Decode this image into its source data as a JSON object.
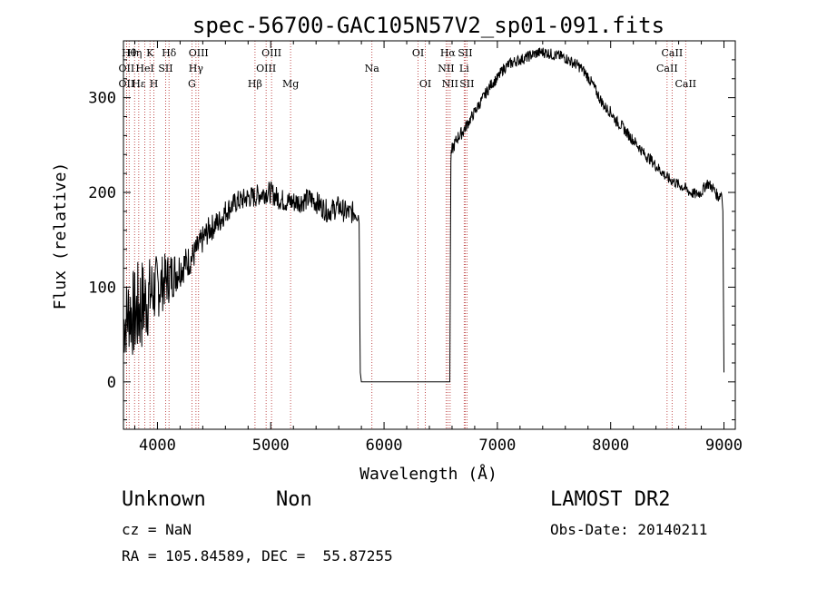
{
  "title": "spec-56700-GAC105N57V2_sp01-091.fits",
  "footer": {
    "classification": "Unknown",
    "subclass": "Non",
    "cz": "cz = NaN",
    "coords": "RA = 105.84589, DEC =  55.87255",
    "survey": "LAMOST DR2",
    "obs_date": "Obs-Date: 20140211"
  },
  "chart_data": {
    "type": "line",
    "xlabel": "Wavelength (Å)",
    "ylabel": "Flux (relative)",
    "xlim": [
      3700,
      9100
    ],
    "ylim": [
      -50,
      360
    ],
    "xticks": [
      4000,
      5000,
      6000,
      7000,
      8000,
      9000
    ],
    "yticks": [
      0,
      100,
      200,
      300
    ],
    "line_color": "#000000",
    "marker_color": "#b22222",
    "series": [
      {
        "x": [
          3700,
          3750,
          3800,
          3850,
          3900,
          3950,
          4000,
          4050,
          4100,
          4150,
          4200,
          4250,
          4300,
          4350,
          4400,
          4450,
          4500,
          4550,
          4600,
          4650,
          4700,
          4750,
          4800,
          4850,
          4900,
          4950,
          5000,
          5050,
          5100,
          5150,
          5200,
          5250,
          5300,
          5350,
          5400,
          5450,
          5500,
          5550,
          5600,
          5650,
          5700,
          5750,
          5780,
          5790,
          5800,
          5810,
          6580,
          6590,
          6600,
          6650,
          6700,
          6750,
          6800,
          6850,
          6900,
          6950,
          7000,
          7050,
          7100,
          7150,
          7200,
          7250,
          7300,
          7350,
          7400,
          7450,
          7500,
          7550,
          7600,
          7650,
          7700,
          7750,
          7800,
          7850,
          7900,
          7950,
          8000,
          8050,
          8100,
          8150,
          8200,
          8250,
          8300,
          8350,
          8400,
          8450,
          8500,
          8550,
          8600,
          8650,
          8700,
          8750,
          8800,
          8850,
          8900,
          8950,
          8980,
          8990,
          9000
        ],
        "y": [
          60,
          75,
          70,
          80,
          85,
          95,
          100,
          105,
          110,
          115,
          120,
          125,
          130,
          140,
          150,
          160,
          165,
          170,
          180,
          185,
          190,
          192,
          195,
          195,
          198,
          200,
          200,
          195,
          192,
          190,
          190,
          190,
          192,
          193,
          190,
          185,
          180,
          182,
          185,
          180,
          178,
          180,
          175,
          10,
          0,
          0,
          0,
          235,
          245,
          258,
          265,
          275,
          285,
          295,
          305,
          315,
          320,
          330,
          335,
          338,
          340,
          342,
          345,
          347,
          348,
          347,
          345,
          344,
          342,
          338,
          335,
          330,
          322,
          312,
          300,
          290,
          285,
          275,
          270,
          262,
          255,
          248,
          240,
          235,
          228,
          222,
          215,
          212,
          208,
          205,
          200,
          198,
          200,
          210,
          205,
          195,
          200,
          180,
          10
        ],
        "jitter": [
          40,
          45,
          50,
          55,
          45,
          40,
          35,
          30,
          28,
          25,
          20,
          18,
          16,
          15,
          15,
          14,
          14,
          13,
          13,
          12,
          12,
          12,
          12,
          12,
          12,
          12,
          12,
          12,
          12,
          12,
          12,
          12,
          12,
          12,
          12,
          12,
          12,
          12,
          12,
          12,
          12,
          12,
          10,
          0,
          0,
          0,
          0,
          6,
          7,
          7,
          7,
          6,
          6,
          6,
          6,
          6,
          6,
          6,
          6,
          6,
          6,
          6,
          6,
          6,
          6,
          6,
          6,
          6,
          6,
          6,
          6,
          6,
          6,
          6,
          6,
          6,
          6,
          6,
          6,
          6,
          6,
          6,
          6,
          6,
          6,
          6,
          6,
          6,
          6,
          6,
          6,
          6,
          6,
          6,
          6,
          6,
          6,
          0,
          0
        ]
      }
    ],
    "lines": [
      {
        "w": 3727,
        "label": "OII",
        "tier": 1
      },
      {
        "w": 3727,
        "label": "OII",
        "tier": 2
      },
      {
        "w": 3750,
        "label": "Hθ",
        "tier": 0
      },
      {
        "w": 3798,
        "label": "Hη",
        "tier": 0
      },
      {
        "w": 3835,
        "label": "Hε",
        "tier": 2
      },
      {
        "w": 3889,
        "label": "HeI",
        "tier": 1
      },
      {
        "w": 3934,
        "label": "K",
        "tier": 0
      },
      {
        "w": 3969,
        "label": "H",
        "tier": 2
      },
      {
        "w": 4072,
        "label": "SII",
        "tier": 1
      },
      {
        "w": 4102,
        "label": "Hδ",
        "tier": 0
      },
      {
        "w": 4304,
        "label": "G",
        "tier": 2
      },
      {
        "w": 4340,
        "label": "Hγ",
        "tier": 1
      },
      {
        "w": 4363,
        "label": "OIII",
        "tier": 0
      },
      {
        "w": 4861,
        "label": "Hβ",
        "tier": 2
      },
      {
        "w": 4959,
        "label": "OIII",
        "tier": 1
      },
      {
        "w": 5007,
        "label": "OIII",
        "tier": 0
      },
      {
        "w": 5175,
        "label": "Mg",
        "tier": 2
      },
      {
        "w": 5893,
        "label": "Na",
        "tier": 1
      },
      {
        "w": 6300,
        "label": "OI",
        "tier": 0
      },
      {
        "w": 6364,
        "label": "OI",
        "tier": 2
      },
      {
        "w": 6548,
        "label": "NII",
        "tier": 1
      },
      {
        "w": 6563,
        "label": "Hα",
        "tier": 0
      },
      {
        "w": 6583,
        "label": "NII",
        "tier": 2
      },
      {
        "w": 6707,
        "label": "Li",
        "tier": 1
      },
      {
        "w": 6716,
        "label": "SII",
        "tier": 0
      },
      {
        "w": 6731,
        "label": "SII",
        "tier": 2
      },
      {
        "w": 8498,
        "label": "CaII",
        "tier": 1
      },
      {
        "w": 8542,
        "label": "CaII",
        "tier": 0
      },
      {
        "w": 8662,
        "label": "CaII",
        "tier": 2
      }
    ]
  }
}
